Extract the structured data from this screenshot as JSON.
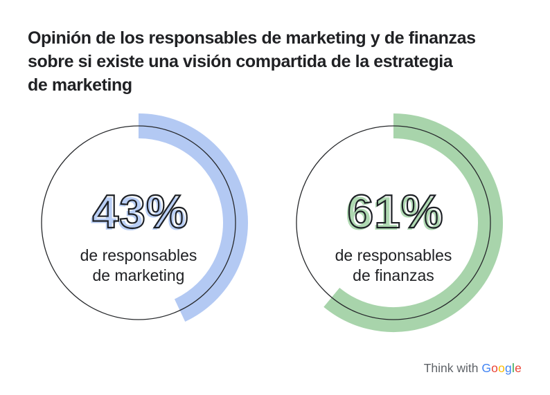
{
  "title": {
    "text": "Opinión de los responsables de marketing y de finanzas sobre si existe una visión compartida de la estrategia de marketing",
    "lines": [
      "Opinión de los responsables de marketing y de finanzas",
      "sobre si existe una visión compartida de la estrategia",
      "de marketing"
    ]
  },
  "chart_data": {
    "type": "donut",
    "title": "Opinión de los responsables de marketing y de finanzas sobre si existe una visión compartida de la estrategia de marketing",
    "legend_position": "none",
    "start_angle_deg": 0,
    "direction": "clockwise",
    "ring": {
      "radius": 140,
      "thickness": 36,
      "outline_color": "#26282b"
    },
    "charts": [
      {
        "name": "marketing",
        "value": 43,
        "max": 100,
        "percent_label": "43%",
        "caption_lines": [
          "de responsables",
          "de marketing"
        ],
        "arc_color": "#b3c9f3",
        "number_fill_color": "#b9cef5",
        "number_outline_color": "#1d2025"
      },
      {
        "name": "finanzas",
        "value": 61,
        "max": 100,
        "percent_label": "61%",
        "caption_lines": [
          "de responsables",
          "de finanzas"
        ],
        "arc_color": "#a8d4ab",
        "number_fill_color": "#afd9b2",
        "number_outline_color": "#1d2025"
      }
    ]
  },
  "footer": {
    "prefix": "Think with ",
    "brand": "Google",
    "brand_letters": [
      {
        "char": "G",
        "color": "#4285F4"
      },
      {
        "char": "o",
        "color": "#EA4335"
      },
      {
        "char": "o",
        "color": "#FBBC05"
      },
      {
        "char": "g",
        "color": "#4285F4"
      },
      {
        "char": "l",
        "color": "#34A853"
      },
      {
        "char": "e",
        "color": "#EA4335"
      }
    ]
  }
}
